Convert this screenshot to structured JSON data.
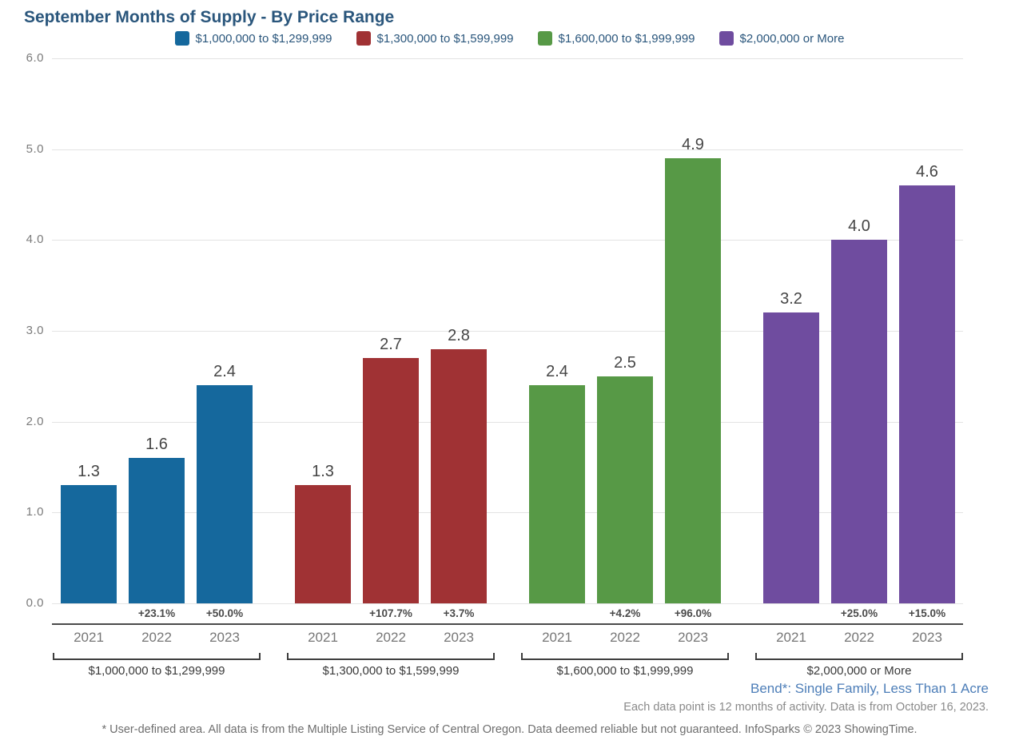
{
  "title": "September Months of Supply - By Price Range",
  "chart_data": {
    "type": "bar",
    "title": "September Months of Supply - By Price Range",
    "categories": [
      "2021",
      "2022",
      "2023"
    ],
    "ylim": [
      0,
      6
    ],
    "ytick_labels": [
      "6.0",
      "5.0",
      "4.0",
      "3.0",
      "2.0",
      "1.0",
      "0.0"
    ],
    "grid": true,
    "legend_position": "top",
    "ylabel": "",
    "xlabel": "",
    "groups": [
      {
        "label": "$1,000,000 to $1,299,999",
        "color": "#15689D",
        "values": [
          1.3,
          1.6,
          2.4
        ],
        "pct_change": [
          "",
          "+23.1%",
          "+50.0%"
        ]
      },
      {
        "label": "$1,300,000 to $1,599,999",
        "color": "#A03234",
        "values": [
          1.3,
          2.7,
          2.8
        ],
        "pct_change": [
          "",
          "+107.7%",
          "+3.7%"
        ]
      },
      {
        "label": "$1,600,000 to $1,999,999",
        "color": "#579946",
        "values": [
          2.4,
          2.5,
          4.9
        ],
        "pct_change": [
          "",
          "+4.2%",
          "+96.0%"
        ]
      },
      {
        "label": "$2,000,000 or More",
        "color": "#6F4C9F",
        "values": [
          3.2,
          4.0,
          4.6
        ],
        "pct_change": [
          "",
          "+25.0%",
          "+15.0%"
        ]
      }
    ]
  },
  "footer": {
    "area_label": "Bend*: Single Family, Less Than 1 Acre",
    "activity_note": "Each data point is 12 months of activity. Data is from October 16, 2023.",
    "disclaimer": "* User-defined area. All data is from the Multiple Listing Service of Central Oregon. Data deemed reliable but not guaranteed. InfoSparks © 2023 ShowingTime."
  },
  "colors": {
    "title_text": "#2A567C",
    "legend_text": "#2A567C",
    "area_label_text": "#4D7EB8",
    "axis_text": "#7B7B7B",
    "gridline": "#E3E3E3",
    "separator_line": "#4A4A4A",
    "bracket": "#3E3E3E"
  }
}
